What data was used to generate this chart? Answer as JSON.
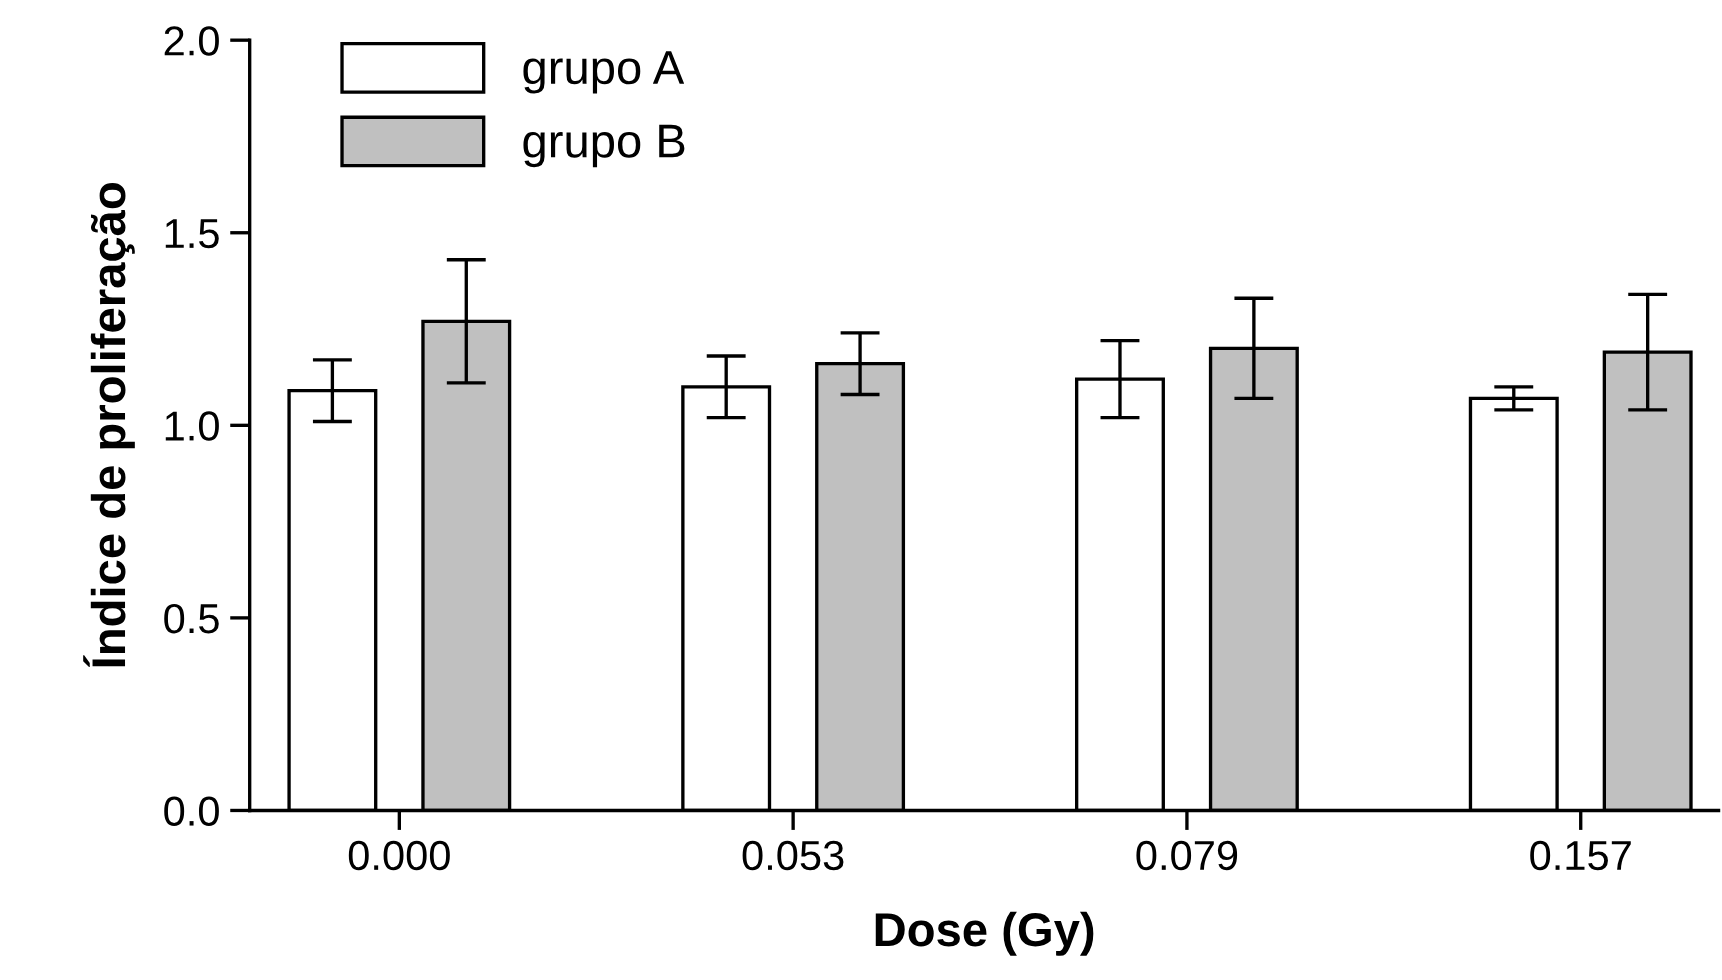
{
  "chart_data": {
    "type": "bar",
    "xlabel": "Dose (Gy)",
    "ylabel": "Índice de proliferação",
    "categories": [
      "0.000",
      "0.053",
      "0.079",
      "0.157"
    ],
    "series": [
      {
        "name": "grupo A",
        "color": "#ffffff",
        "values": [
          1.09,
          1.1,
          1.12,
          1.07
        ],
        "errors": [
          0.08,
          0.08,
          0.1,
          0.03
        ]
      },
      {
        "name": "grupo B",
        "color": "#c0c0c0",
        "values": [
          1.27,
          1.16,
          1.2,
          1.19
        ],
        "errors": [
          0.16,
          0.08,
          0.13,
          0.15
        ]
      }
    ],
    "ylim": [
      0,
      2.0
    ],
    "yticks": [
      {
        "value": 0,
        "label": "0.0"
      },
      {
        "value": 0.5,
        "label": "0.5"
      },
      {
        "value": 1.0,
        "label": "1.0"
      },
      {
        "value": 1.5,
        "label": "1.5"
      },
      {
        "value": 2.0,
        "label": "2.0"
      }
    ],
    "grid": false,
    "legend": "top left"
  }
}
